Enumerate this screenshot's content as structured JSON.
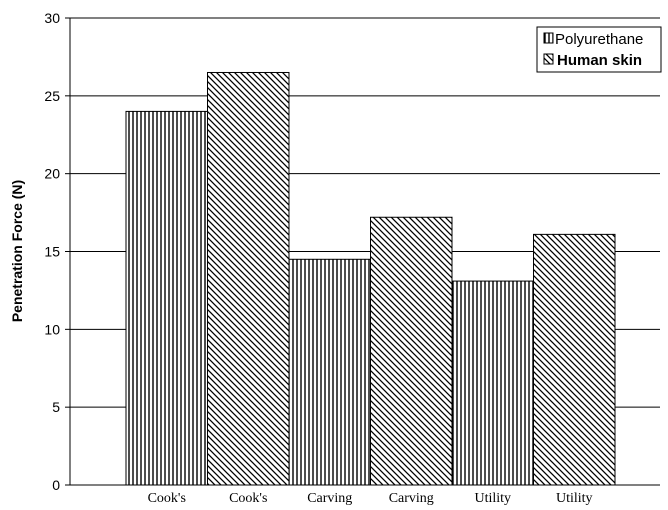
{
  "chart_data": {
    "type": "bar",
    "ylabel": "Penetration Force (N)",
    "ylim": [
      0,
      30
    ],
    "yticks": [
      0,
      5,
      10,
      15,
      20,
      25,
      30
    ],
    "grid": true,
    "legend": "top-right",
    "bars": [
      {
        "label": "Cook's",
        "series": "Polyurethane",
        "value": 24.0
      },
      {
        "label": "Cook's",
        "series": "Human skin",
        "value": 26.5
      },
      {
        "label": "Carving",
        "series": "Polyurethane",
        "value": 14.5
      },
      {
        "label": "Carving",
        "series": "Human skin",
        "value": 17.2
      },
      {
        "label": "Utility",
        "series": "Polyurethane",
        "value": 13.1
      },
      {
        "label": "Utility",
        "series": "Human skin",
        "value": 16.1
      }
    ],
    "series": [
      {
        "name": "Polyurethane",
        "pattern": "vertical-lines"
      },
      {
        "name": "Human skin",
        "pattern": "diagonal-lines"
      }
    ]
  }
}
